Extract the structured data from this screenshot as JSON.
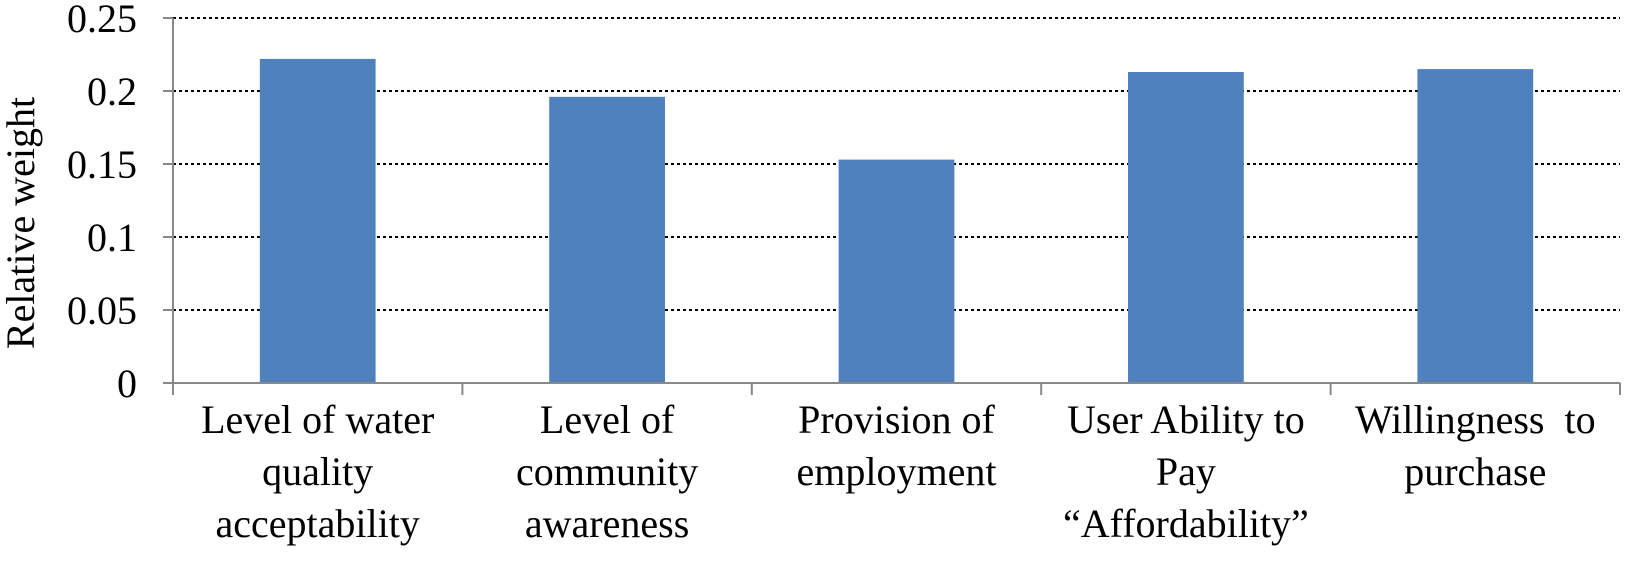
{
  "chart_data": {
    "type": "bar",
    "title": "",
    "xlabel": "",
    "ylabel": "Relative weight",
    "ylim": [
      0,
      0.25
    ],
    "yticks": [
      "0",
      "0.05",
      "0.1",
      "0.15",
      "0.2",
      "0.25"
    ],
    "grid": true,
    "legend": "none",
    "bar_color": "#4F81BD",
    "categories": [
      [
        "Level of water",
        "quality",
        "acceptability"
      ],
      [
        "Level of",
        "community",
        "awareness"
      ],
      [
        "Provision of",
        "employment"
      ],
      [
        "User Ability to",
        "Pay",
        "“Affordability”"
      ],
      [
        "Willingness  to",
        "purchase"
      ]
    ],
    "values": [
      0.222,
      0.196,
      0.153,
      0.213,
      0.215
    ]
  }
}
